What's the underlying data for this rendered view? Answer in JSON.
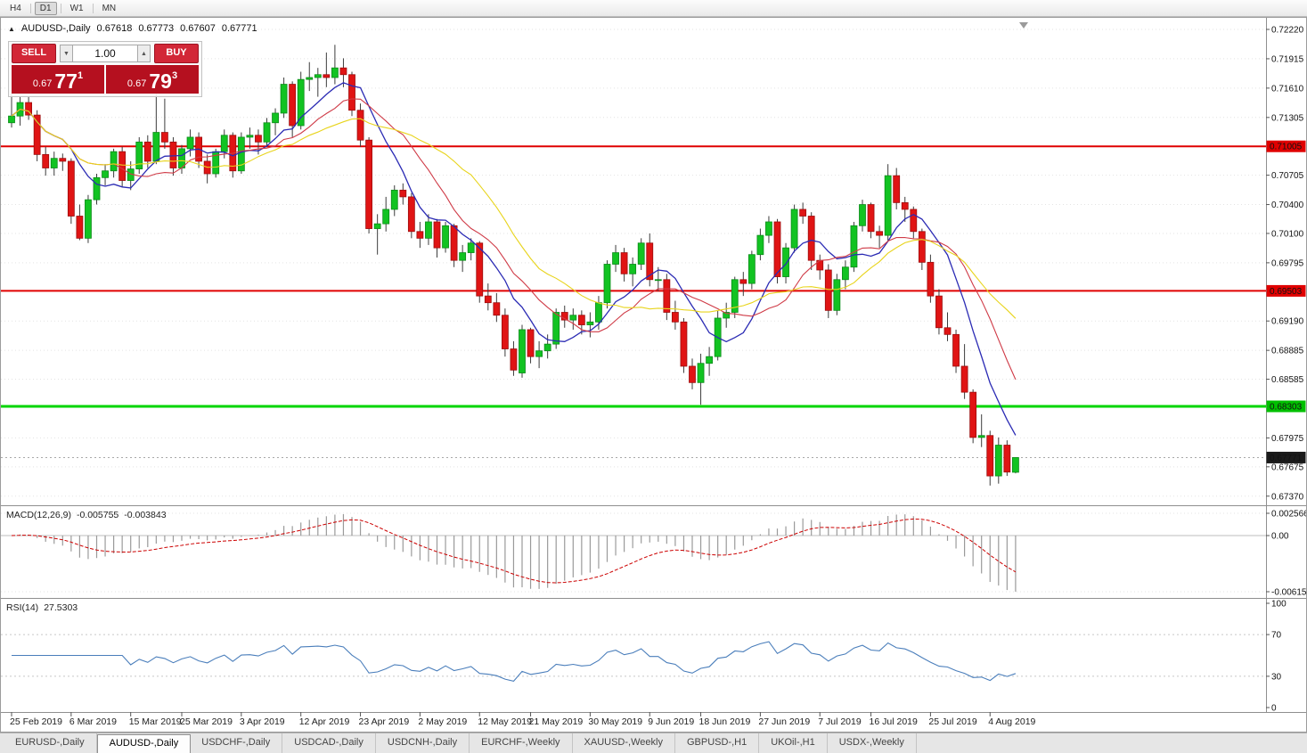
{
  "toolbar": {
    "periods": [
      "H4",
      "D1",
      "W1",
      "MN"
    ],
    "active": "D1"
  },
  "quote_header": {
    "symbol": "AUDUSD-,Daily",
    "open": "0.67618",
    "high": "0.67773",
    "low": "0.67607",
    "close": "0.67771"
  },
  "trade_panel": {
    "sell_label": "SELL",
    "buy_label": "BUY",
    "volume": "1.00",
    "sell_price": {
      "prefix": "0.67",
      "big": "77",
      "sup": "1"
    },
    "buy_price": {
      "prefix": "0.67",
      "big": "79",
      "sup": "3"
    }
  },
  "price_axis": {
    "labels": [
      "0.72220",
      "0.71915",
      "0.71610",
      "0.71305",
      "0.70705",
      "0.70400",
      "0.70100",
      "0.69795",
      "0.69190",
      "0.68885",
      "0.68585",
      "0.67975",
      "0.67675",
      "0.67370"
    ],
    "badges": [
      {
        "label": "0.71005",
        "value": 0.71005,
        "color": "#e00000"
      },
      {
        "label": "0.69503",
        "value": 0.69503,
        "color": "#e00000"
      },
      {
        "label": "0.68303",
        "value": 0.68303,
        "color": "#00c000"
      },
      {
        "label": "0.67771",
        "value": 0.67771,
        "color": "#1a1a1a"
      }
    ]
  },
  "levels": [
    {
      "name": "resistance-1",
      "value": 0.71005,
      "color": "#e00000",
      "width": 2
    },
    {
      "name": "resistance-2",
      "value": 0.69503,
      "color": "#e00000",
      "width": 2
    },
    {
      "name": "support-1",
      "value": 0.68303,
      "color": "#00d500",
      "width": 3
    }
  ],
  "current_price": 0.67771,
  "macd_panel": {
    "label": "MACD(12,26,9)",
    "value_main": "-0.005755",
    "value_signal": "-0.003843",
    "axis_labels": [
      "0.002566",
      "0.00",
      "-0.006151"
    ],
    "axis_values": [
      0.002566,
      0,
      -0.006151
    ],
    "fast": 12,
    "slow": 26,
    "signal": 9
  },
  "rsi_panel": {
    "label": "RSI(14)",
    "value": "27.5303",
    "period": 14,
    "axis_labels": [
      "100",
      "70",
      "30",
      "0"
    ],
    "axis_values": [
      100,
      70,
      30,
      0
    ],
    "level_lines": [
      70,
      30
    ]
  },
  "date_axis": {
    "labels": [
      "25 Feb 2019",
      "6 Mar 2019",
      "15 Mar 2019",
      "25 Mar 2019",
      "3 Apr 2019",
      "12 Apr 2019",
      "23 Apr 2019",
      "2 May 2019",
      "12 May 2019",
      "21 May 2019",
      "30 May 2019",
      "9 Jun 2019",
      "18 Jun 2019",
      "27 Jun 2019",
      "7 Jul 2019",
      "16 Jul 2019",
      "25 Jul 2019",
      "4 Aug 2019"
    ],
    "indices": [
      0,
      7,
      14,
      20,
      27,
      34,
      41,
      48,
      55,
      61,
      68,
      75,
      81,
      88,
      95,
      101,
      108,
      115
    ]
  },
  "bottom_tabs": {
    "items": [
      "EURUSD-,Daily",
      "AUDUSD-,Daily",
      "USDCHF-,Daily",
      "USDCAD-,Daily",
      "USDCNH-,Daily",
      "EURCHF-,Weekly",
      "XAUUSD-,Weekly",
      "GBPUSD-,H1",
      "UKOil-,H1",
      "USDX-,Weekly"
    ],
    "active": "AUDUSD-,Daily"
  },
  "chart_data": {
    "type": "candlestick",
    "symbol": "AUDUSD",
    "timeframe": "Daily",
    "visible_price_range": {
      "top": 0.7235,
      "bottom": 0.6729
    },
    "up_color": "#12c322",
    "down_color": "#e01414",
    "overlays": [
      {
        "name": "ma-fast",
        "type": "sma",
        "period": 8,
        "color": "#2b2bb4"
      },
      {
        "name": "ma-mid",
        "type": "sma",
        "period": 13,
        "color": "#cf3a46"
      },
      {
        "name": "ma-slow",
        "type": "sma",
        "period": 21,
        "color": "#e8d41c"
      }
    ],
    "candles_ohlc": [
      [
        0.7125,
        0.7155,
        0.712,
        0.7132
      ],
      [
        0.7132,
        0.7152,
        0.7122,
        0.7146
      ],
      [
        0.7146,
        0.7152,
        0.7128,
        0.7133
      ],
      [
        0.7133,
        0.7138,
        0.7085,
        0.7092
      ],
      [
        0.7092,
        0.71,
        0.707,
        0.7078
      ],
      [
        0.7078,
        0.7095,
        0.707,
        0.7088
      ],
      [
        0.7088,
        0.7093,
        0.7075,
        0.7085
      ],
      [
        0.7085,
        0.7088,
        0.702,
        0.7028
      ],
      [
        0.7028,
        0.704,
        0.7003,
        0.7005
      ],
      [
        0.7005,
        0.705,
        0.7,
        0.7045
      ],
      [
        0.7045,
        0.7072,
        0.704,
        0.7068
      ],
      [
        0.7068,
        0.7082,
        0.706,
        0.7075
      ],
      [
        0.7075,
        0.7098,
        0.7068,
        0.7095
      ],
      [
        0.7095,
        0.71,
        0.7058,
        0.7065
      ],
      [
        0.7065,
        0.7085,
        0.7055,
        0.7077
      ],
      [
        0.7077,
        0.711,
        0.7072,
        0.7105
      ],
      [
        0.7105,
        0.7112,
        0.7078,
        0.7085
      ],
      [
        0.7085,
        0.7168,
        0.7082,
        0.7115
      ],
      [
        0.7115,
        0.715,
        0.7098,
        0.7105
      ],
      [
        0.7105,
        0.711,
        0.707,
        0.7078
      ],
      [
        0.7078,
        0.7102,
        0.7072,
        0.7098
      ],
      [
        0.7098,
        0.7118,
        0.709,
        0.711
      ],
      [
        0.711,
        0.7115,
        0.7078,
        0.7085
      ],
      [
        0.7085,
        0.7092,
        0.7062,
        0.7072
      ],
      [
        0.7072,
        0.7098,
        0.7068,
        0.7095
      ],
      [
        0.7095,
        0.7118,
        0.7088,
        0.7112
      ],
      [
        0.7112,
        0.7115,
        0.7068,
        0.7075
      ],
      [
        0.7075,
        0.7115,
        0.7072,
        0.711
      ],
      [
        0.711,
        0.712,
        0.7098,
        0.7112
      ],
      [
        0.7112,
        0.7118,
        0.7092,
        0.7105
      ],
      [
        0.7105,
        0.713,
        0.71,
        0.7125
      ],
      [
        0.7125,
        0.714,
        0.7112,
        0.7135
      ],
      [
        0.7135,
        0.7172,
        0.713,
        0.7165
      ],
      [
        0.7165,
        0.7168,
        0.711,
        0.7122
      ],
      [
        0.7122,
        0.7178,
        0.7118,
        0.717
      ],
      [
        0.717,
        0.7188,
        0.7158,
        0.7172
      ],
      [
        0.7172,
        0.7182,
        0.7152,
        0.7175
      ],
      [
        0.7175,
        0.7198,
        0.7162,
        0.7172
      ],
      [
        0.7172,
        0.7206,
        0.7165,
        0.7182
      ],
      [
        0.7182,
        0.7192,
        0.7162,
        0.7175
      ],
      [
        0.7175,
        0.7178,
        0.7132,
        0.7138
      ],
      [
        0.7138,
        0.7145,
        0.71,
        0.7107
      ],
      [
        0.7107,
        0.711,
        0.701,
        0.7015
      ],
      [
        0.7015,
        0.703,
        0.6988,
        0.702
      ],
      [
        0.702,
        0.7048,
        0.7012,
        0.7035
      ],
      [
        0.7035,
        0.706,
        0.7028,
        0.7055
      ],
      [
        0.7055,
        0.7062,
        0.704,
        0.7048
      ],
      [
        0.7048,
        0.7052,
        0.7005,
        0.7012
      ],
      [
        0.7012,
        0.7022,
        0.6995,
        0.7005
      ],
      [
        0.7005,
        0.703,
        0.6998,
        0.7022
      ],
      [
        0.7022,
        0.7025,
        0.6985,
        0.6995
      ],
      [
        0.6995,
        0.7022,
        0.699,
        0.7018
      ],
      [
        0.7018,
        0.702,
        0.6975,
        0.6982
      ],
      [
        0.6982,
        0.6998,
        0.697,
        0.699
      ],
      [
        0.699,
        0.7005,
        0.6982,
        0.7
      ],
      [
        0.7,
        0.7002,
        0.6938,
        0.6945
      ],
      [
        0.6945,
        0.6958,
        0.693,
        0.6938
      ],
      [
        0.6938,
        0.6948,
        0.6918,
        0.6925
      ],
      [
        0.6925,
        0.6932,
        0.6882,
        0.689
      ],
      [
        0.689,
        0.6898,
        0.6862,
        0.6868
      ],
      [
        0.6865,
        0.6915,
        0.686,
        0.691
      ],
      [
        0.691,
        0.6912,
        0.6875,
        0.6882
      ],
      [
        0.6882,
        0.6898,
        0.687,
        0.6888
      ],
      [
        0.6888,
        0.6905,
        0.688,
        0.6895
      ],
      [
        0.6895,
        0.6932,
        0.689,
        0.6928
      ],
      [
        0.6928,
        0.6935,
        0.6912,
        0.692
      ],
      [
        0.692,
        0.6932,
        0.691,
        0.6925
      ],
      [
        0.6925,
        0.693,
        0.6905,
        0.6915
      ],
      [
        0.6915,
        0.6928,
        0.6902,
        0.6918
      ],
      [
        0.6918,
        0.6945,
        0.691,
        0.6938
      ],
      [
        0.6938,
        0.6982,
        0.6932,
        0.6978
      ],
      [
        0.6978,
        0.6998,
        0.697,
        0.699
      ],
      [
        0.699,
        0.6995,
        0.696,
        0.6968
      ],
      [
        0.6968,
        0.6985,
        0.6955,
        0.6978
      ],
      [
        0.6978,
        0.7005,
        0.6972,
        0.7
      ],
      [
        0.7,
        0.701,
        0.6955,
        0.6962
      ],
      [
        0.6962,
        0.6975,
        0.695,
        0.6962
      ],
      [
        0.6962,
        0.6968,
        0.692,
        0.6928
      ],
      [
        0.6928,
        0.694,
        0.691,
        0.6918
      ],
      [
        0.6918,
        0.6922,
        0.6865,
        0.6872
      ],
      [
        0.6872,
        0.688,
        0.6848,
        0.6855
      ],
      [
        0.6855,
        0.6885,
        0.6832,
        0.6875
      ],
      [
        0.6875,
        0.6892,
        0.6862,
        0.6882
      ],
      [
        0.6882,
        0.693,
        0.6878,
        0.6922
      ],
      [
        0.6922,
        0.6938,
        0.6912,
        0.6928
      ],
      [
        0.6928,
        0.6965,
        0.6922,
        0.6962
      ],
      [
        0.6962,
        0.697,
        0.6945,
        0.6958
      ],
      [
        0.6958,
        0.6992,
        0.6952,
        0.6988
      ],
      [
        0.6988,
        0.7015,
        0.6982,
        0.7008
      ],
      [
        0.7008,
        0.7028,
        0.7,
        0.7022
      ],
      [
        0.7022,
        0.7025,
        0.6958,
        0.6965
      ],
      [
        0.6965,
        0.7,
        0.6958,
        0.6995
      ],
      [
        0.6995,
        0.704,
        0.699,
        0.7035
      ],
      [
        0.7035,
        0.7042,
        0.702,
        0.7028
      ],
      [
        0.7028,
        0.7032,
        0.6972,
        0.6982
      ],
      [
        0.6982,
        0.6988,
        0.6962,
        0.6972
      ],
      [
        0.6972,
        0.6978,
        0.6922,
        0.693
      ],
      [
        0.693,
        0.6968,
        0.6925,
        0.6962
      ],
      [
        0.6962,
        0.6982,
        0.6952,
        0.6975
      ],
      [
        0.6975,
        0.7022,
        0.697,
        0.7018
      ],
      [
        0.7018,
        0.7045,
        0.7012,
        0.704
      ],
      [
        0.704,
        0.7042,
        0.7005,
        0.7012
      ],
      [
        0.7012,
        0.7018,
        0.6995,
        0.7008
      ],
      [
        0.7008,
        0.7082,
        0.7002,
        0.707
      ],
      [
        0.707,
        0.7078,
        0.7035,
        0.7042
      ],
      [
        0.7042,
        0.7048,
        0.7022,
        0.7035
      ],
      [
        0.7035,
        0.7038,
        0.7005,
        0.7012
      ],
      [
        0.7012,
        0.7015,
        0.6972,
        0.698
      ],
      [
        0.698,
        0.6988,
        0.6938,
        0.6945
      ],
      [
        0.6945,
        0.6952,
        0.6905,
        0.6912
      ],
      [
        0.6912,
        0.6928,
        0.6898,
        0.6905
      ],
      [
        0.6905,
        0.691,
        0.6865,
        0.6872
      ],
      [
        0.6872,
        0.6895,
        0.6838,
        0.6845
      ],
      [
        0.6845,
        0.6848,
        0.6792,
        0.6798
      ],
      [
        0.6798,
        0.6822,
        0.6788,
        0.68
      ],
      [
        0.68,
        0.6805,
        0.6748,
        0.6758
      ],
      [
        0.6758,
        0.6798,
        0.675,
        0.679
      ],
      [
        0.679,
        0.6795,
        0.6758,
        0.6762
      ],
      [
        0.67618,
        0.67773,
        0.67607,
        0.67771
      ]
    ]
  }
}
